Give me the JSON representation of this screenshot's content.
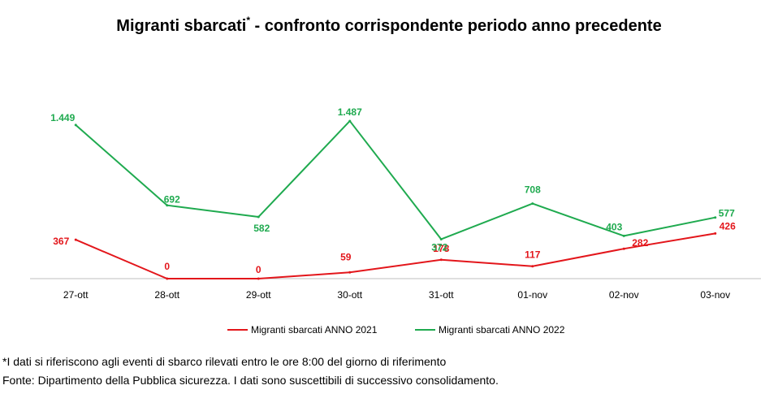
{
  "title": {
    "main": "Migranti sbarcati",
    "mark": "*",
    "rest": " - confronto corrispondente periodo anno precedente"
  },
  "footnotes": {
    "asterisk": "*I dati si riferiscono agli eventi di sbarco rilevati entro le ore 8:00 del giorno di riferimento",
    "source": "Fonte: Dipartimento della Pubblica sicurezza. I dati sono suscettibili di successivo consolidamento."
  },
  "chart_data": {
    "type": "line",
    "title": "Migranti sbarcati* - confronto corrispondente periodo anno precedente",
    "xlabel": "",
    "ylabel": "",
    "grid": false,
    "legend_position": "bottom",
    "ylim": [
      0,
      1600
    ],
    "categories": [
      "27-ott",
      "28-ott",
      "29-ott",
      "30-ott",
      "31-ott",
      "01-nov",
      "02-nov",
      "03-nov"
    ],
    "series": [
      {
        "name": "Migranti sbarcati ANNO 2021",
        "color": "#e3161b",
        "values": [
          367,
          0,
          0,
          59,
          178,
          117,
          282,
          426
        ],
        "labels": [
          "367",
          "0",
          "0",
          "59",
          "178",
          "117",
          "282",
          "426"
        ]
      },
      {
        "name": "Migranti sbarcati ANNO 2022",
        "color": "#1faa4f",
        "values": [
          1449,
          692,
          582,
          1487,
          372,
          708,
          403,
          577
        ],
        "labels": [
          "1.449",
          "692",
          "582",
          "1.487",
          "372",
          "708",
          "403",
          "577"
        ]
      }
    ]
  }
}
